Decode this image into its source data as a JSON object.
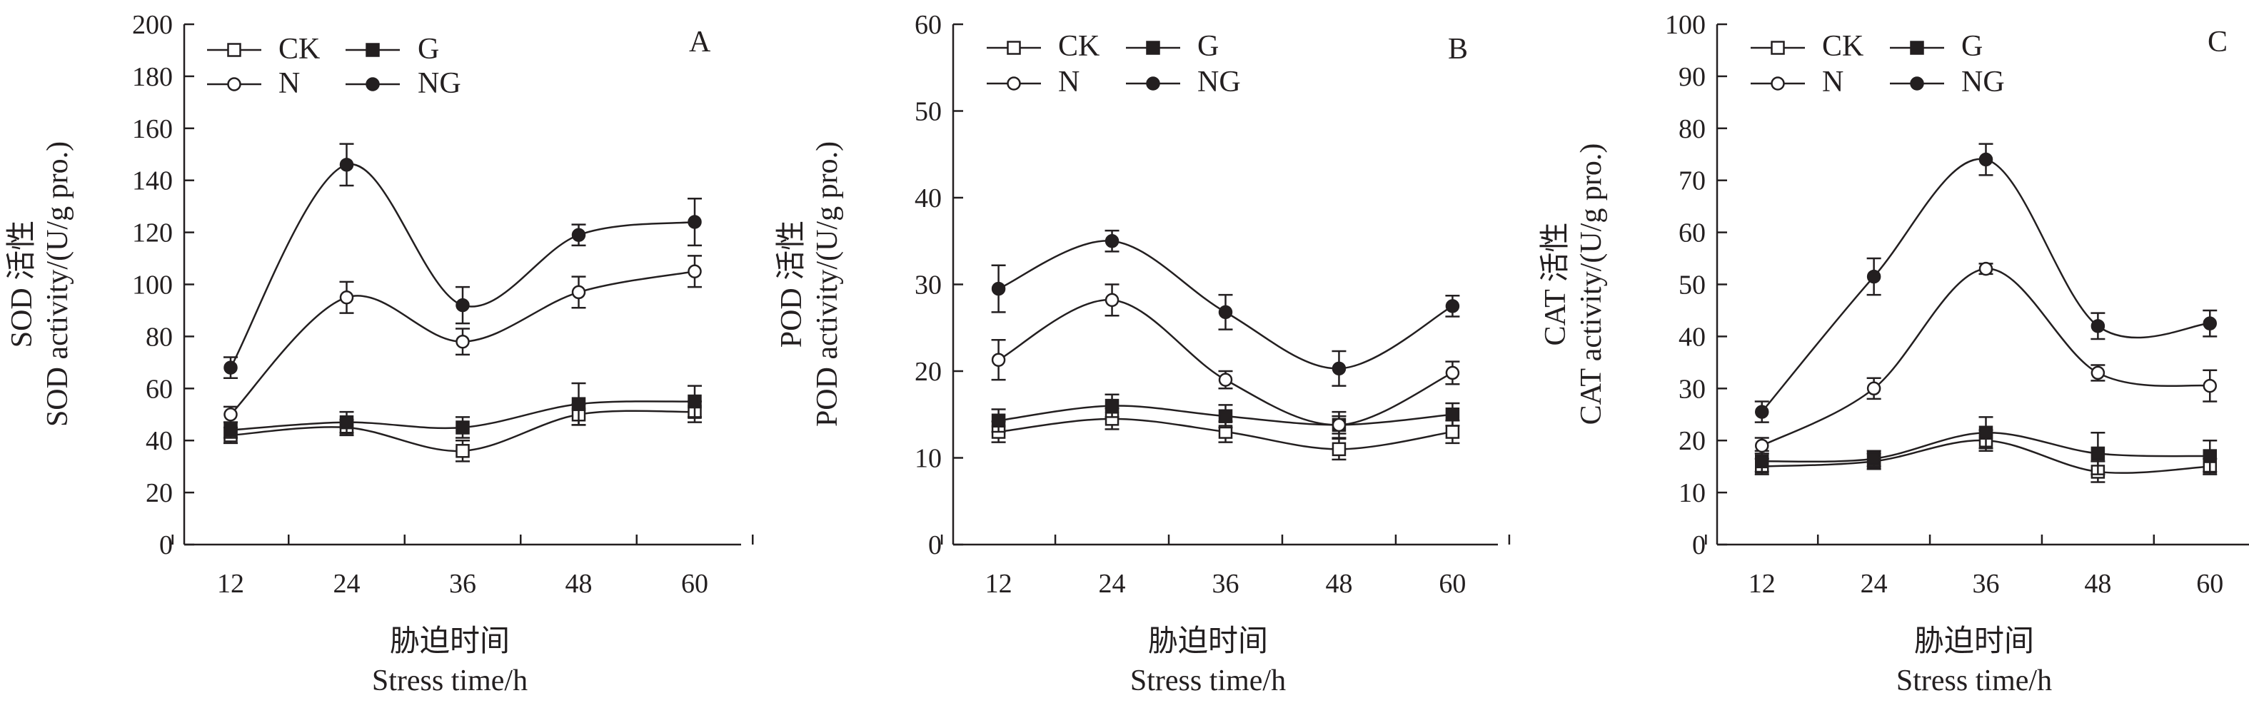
{
  "chart_data": [
    {
      "type": "line",
      "panel_letter": "A",
      "x": [
        12,
        24,
        36,
        48,
        60
      ],
      "x_ticks": [
        "12",
        "24",
        "36",
        "48",
        "60"
      ],
      "xlabel_zh": "胁迫时间",
      "xlabel_en": "Stress time/h",
      "ylabel_zh": "SOD 活性",
      "ylabel_en": "SOD activity/(U/g pro.)",
      "ylim": [
        0,
        200
      ],
      "y_ticks": [
        "0",
        "20",
        "40",
        "60",
        "80",
        "100",
        "120",
        "140",
        "160",
        "180",
        "200"
      ],
      "legend_position": "top-left",
      "series": [
        {
          "name": "CK",
          "marker": "open-square",
          "values": [
            42,
            45,
            36,
            50,
            51
          ],
          "errors": [
            3,
            3,
            4,
            4,
            4
          ]
        },
        {
          "name": "G",
          "marker": "filled-square",
          "values": [
            44,
            47,
            45,
            54,
            55
          ],
          "errors": [
            3,
            4,
            4,
            8,
            6
          ]
        },
        {
          "name": "N",
          "marker": "open-circle",
          "values": [
            50,
            95,
            78,
            97,
            105
          ],
          "errors": [
            3,
            6,
            5,
            6,
            6
          ]
        },
        {
          "name": "NG",
          "marker": "filled-circle",
          "values": [
            68,
            146,
            92,
            119,
            124
          ],
          "errors": [
            4,
            8,
            7,
            4,
            9
          ]
        }
      ]
    },
    {
      "type": "line",
      "panel_letter": "B",
      "x": [
        12,
        24,
        36,
        48,
        60
      ],
      "x_ticks": [
        "12",
        "24",
        "36",
        "48",
        "60"
      ],
      "xlabel_zh": "胁迫时间",
      "xlabel_en": "Stress time/h",
      "ylabel_zh": "POD 活性",
      "ylabel_en": "POD activity/(U/g pro.)",
      "ylim": [
        0,
        60
      ],
      "y_ticks": [
        "0",
        "10",
        "20",
        "30",
        "40",
        "50",
        "60"
      ],
      "legend_position": "top-left",
      "series": [
        {
          "name": "CK",
          "marker": "open-square",
          "values": [
            13.0,
            14.5,
            13.0,
            11.0,
            13.0
          ],
          "errors": [
            1.2,
            1.2,
            1.2,
            1.2,
            1.3
          ]
        },
        {
          "name": "G",
          "marker": "filled-square",
          "values": [
            14.3,
            16.0,
            14.8,
            13.8,
            15.0
          ],
          "errors": [
            1.3,
            1.3,
            1.3,
            1.5,
            1.3
          ]
        },
        {
          "name": "N",
          "marker": "open-circle",
          "values": [
            21.3,
            28.2,
            19.0,
            13.8,
            19.8
          ],
          "errors": [
            2.3,
            1.8,
            1.0,
            1.0,
            1.3
          ]
        },
        {
          "name": "NG",
          "marker": "filled-circle",
          "values": [
            29.5,
            35.0,
            26.8,
            20.3,
            27.5
          ],
          "errors": [
            2.7,
            1.2,
            2.0,
            2.0,
            1.2
          ]
        }
      ]
    },
    {
      "type": "line",
      "panel_letter": "C",
      "x": [
        12,
        24,
        36,
        48,
        60
      ],
      "x_ticks": [
        "12",
        "24",
        "36",
        "48",
        "60"
      ],
      "xlabel_zh": "胁迫时间",
      "xlabel_en": "Stress time/h",
      "ylabel_zh": "CAT 活性",
      "ylabel_en": "CAT activity/(U/g pro.)",
      "ylim": [
        0,
        100
      ],
      "y_ticks": [
        "0",
        "10",
        "20",
        "30",
        "40",
        "50",
        "60",
        "70",
        "80",
        "90",
        "100"
      ],
      "legend_position": "top-left",
      "series": [
        {
          "name": "CK",
          "marker": "open-square",
          "values": [
            15.0,
            16.0,
            20.0,
            14.0,
            15.0
          ],
          "errors": [
            1.5,
            1.5,
            2.0,
            2.0,
            1.5
          ]
        },
        {
          "name": "G",
          "marker": "filled-square",
          "values": [
            16.0,
            16.5,
            21.5,
            17.5,
            17.0
          ],
          "errors": [
            2.0,
            1.5,
            3.0,
            4.0,
            3.0
          ]
        },
        {
          "name": "N",
          "marker": "open-circle",
          "values": [
            19.0,
            30.0,
            53.0,
            33.0,
            30.5
          ],
          "errors": [
            1.5,
            2.0,
            1.0,
            1.5,
            3.0
          ]
        },
        {
          "name": "NG",
          "marker": "filled-circle",
          "values": [
            25.5,
            51.5,
            74.0,
            42.0,
            42.5
          ],
          "errors": [
            2.0,
            3.5,
            3.0,
            2.5,
            2.5
          ]
        }
      ]
    }
  ]
}
